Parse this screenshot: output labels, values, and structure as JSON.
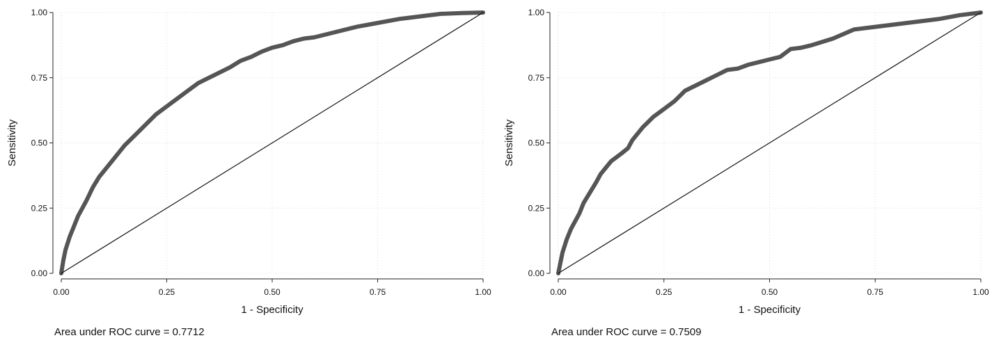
{
  "chart_data": [
    {
      "type": "line",
      "title": "",
      "xlabel": "1 - Specificity",
      "ylabel": "Sensitivity",
      "xlim": [
        0,
        1
      ],
      "ylim": [
        0,
        1
      ],
      "grid": true,
      "x_ticks": [
        "0.00",
        "0.25",
        "0.50",
        "0.75",
        "1.00"
      ],
      "y_ticks": [
        "0.00",
        "0.25",
        "0.50",
        "0.75",
        "1.00"
      ],
      "note": "Area under ROC curve = 0.7712",
      "series": [
        {
          "color": "#555555",
          "x": [
            0,
            0.005,
            0.01,
            0.02,
            0.03,
            0.04,
            0.05,
            0.06,
            0.075,
            0.09,
            0.1,
            0.125,
            0.15,
            0.175,
            0.2,
            0.225,
            0.25,
            0.275,
            0.3,
            0.325,
            0.35,
            0.375,
            0.4,
            0.425,
            0.45,
            0.475,
            0.5,
            0.525,
            0.55,
            0.575,
            0.6,
            0.65,
            0.7,
            0.75,
            0.8,
            0.85,
            0.9,
            0.95,
            1.0
          ],
          "y": [
            0,
            0.05,
            0.09,
            0.14,
            0.18,
            0.22,
            0.25,
            0.28,
            0.33,
            0.37,
            0.39,
            0.44,
            0.49,
            0.53,
            0.57,
            0.61,
            0.64,
            0.67,
            0.7,
            0.73,
            0.75,
            0.77,
            0.79,
            0.815,
            0.83,
            0.85,
            0.865,
            0.875,
            0.89,
            0.9,
            0.905,
            0.925,
            0.945,
            0.96,
            0.975,
            0.985,
            0.995,
            0.998,
            1.0
          ]
        },
        {
          "color": "#111111",
          "x": [
            0,
            1
          ],
          "y": [
            0,
            1
          ]
        }
      ]
    },
    {
      "type": "line",
      "title": "",
      "xlabel": "1 - Specificity",
      "ylabel": "Sensitivity",
      "xlim": [
        0,
        1
      ],
      "ylim": [
        0,
        1
      ],
      "grid": true,
      "x_ticks": [
        "0.00",
        "0.25",
        "0.50",
        "0.75",
        "1.00"
      ],
      "y_ticks": [
        "0.00",
        "0.25",
        "0.50",
        "0.75",
        "1.00"
      ],
      "note": "Area under ROC curve = 0.7509",
      "series": [
        {
          "color": "#555555",
          "x": [
            0,
            0.005,
            0.01,
            0.02,
            0.03,
            0.04,
            0.05,
            0.06,
            0.075,
            0.09,
            0.1,
            0.125,
            0.15,
            0.165,
            0.175,
            0.2,
            0.225,
            0.25,
            0.275,
            0.3,
            0.325,
            0.35,
            0.375,
            0.4,
            0.425,
            0.45,
            0.475,
            0.5,
            0.525,
            0.55,
            0.575,
            0.6,
            0.65,
            0.7,
            0.75,
            0.8,
            0.85,
            0.9,
            0.95,
            1.0
          ],
          "y": [
            0,
            0.04,
            0.08,
            0.13,
            0.17,
            0.2,
            0.23,
            0.27,
            0.31,
            0.35,
            0.38,
            0.43,
            0.46,
            0.48,
            0.51,
            0.56,
            0.6,
            0.63,
            0.66,
            0.7,
            0.72,
            0.74,
            0.76,
            0.78,
            0.785,
            0.8,
            0.81,
            0.82,
            0.83,
            0.86,
            0.865,
            0.875,
            0.9,
            0.935,
            0.945,
            0.955,
            0.965,
            0.975,
            0.99,
            1.0
          ]
        },
        {
          "color": "#111111",
          "x": [
            0,
            1
          ],
          "y": [
            0,
            1
          ]
        }
      ]
    }
  ]
}
